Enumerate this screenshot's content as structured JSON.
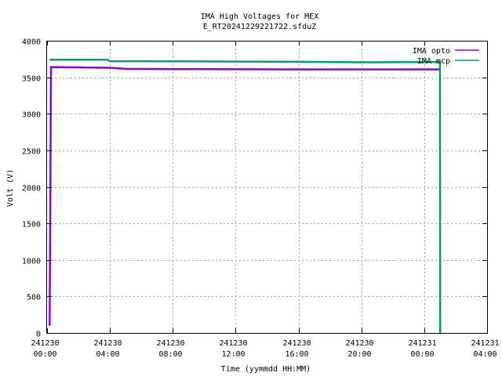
{
  "chart_data": {
    "type": "line",
    "title": "IMA High Voltages for MEX",
    "subtitle": "E_RT20241229221722.sfduZ",
    "xlabel": "Time (yymmdd HH:MM)",
    "ylabel": "Volt (V)",
    "xlim": [
      "2024-12-30 00:00",
      "2024-12-31 04:00"
    ],
    "ylim": [
      0,
      4000
    ],
    "grid": true,
    "legend_position": "top-right",
    "y_ticks": [
      "0",
      "500",
      "1000",
      "1500",
      "2000",
      "2500",
      "3000",
      "3500",
      "4000"
    ],
    "x_ticks": [
      {
        "date": "241230",
        "time": "00:00"
      },
      {
        "date": "241230",
        "time": "04:00"
      },
      {
        "date": "241230",
        "time": "08:00"
      },
      {
        "date": "241230",
        "time": "12:00"
      },
      {
        "date": "241230",
        "time": "16:00"
      },
      {
        "date": "241230",
        "time": "20:00"
      },
      {
        "date": "241231",
        "time": "00:00"
      },
      {
        "date": "241231",
        "time": "04:00"
      }
    ],
    "series": [
      {
        "name": "IMA opto",
        "color": "#9400d3",
        "points": [
          [
            "2024-12-30 00:10",
            100
          ],
          [
            "2024-12-30 00:15",
            3640
          ],
          [
            "2024-12-30 02:00",
            3635
          ],
          [
            "2024-12-30 04:00",
            3630
          ],
          [
            "2024-12-30 05:00",
            3615
          ],
          [
            "2024-12-30 08:00",
            3612
          ],
          [
            "2024-12-30 12:00",
            3610
          ],
          [
            "2024-12-30 16:00",
            3608
          ],
          [
            "2024-12-30 20:00",
            3608
          ],
          [
            "2024-12-31 00:00",
            3608
          ],
          [
            "2024-12-31 01:00",
            3608
          ]
        ]
      },
      {
        "name": "IMA mcp",
        "color": "#009e73",
        "points": [
          [
            "2024-12-30 00:10",
            3740
          ],
          [
            "2024-12-30 02:00",
            3740
          ],
          [
            "2024-12-30 03:50",
            3740
          ],
          [
            "2024-12-30 04:00",
            3720
          ],
          [
            "2024-12-30 08:00",
            3718
          ],
          [
            "2024-12-30 12:00",
            3715
          ],
          [
            "2024-12-30 16:00",
            3712
          ],
          [
            "2024-12-30 20:00",
            3705
          ],
          [
            "2024-12-31 00:00",
            3708
          ],
          [
            "2024-12-31 01:00",
            3708
          ],
          [
            "2024-12-31 01:01",
            0
          ]
        ]
      }
    ]
  }
}
